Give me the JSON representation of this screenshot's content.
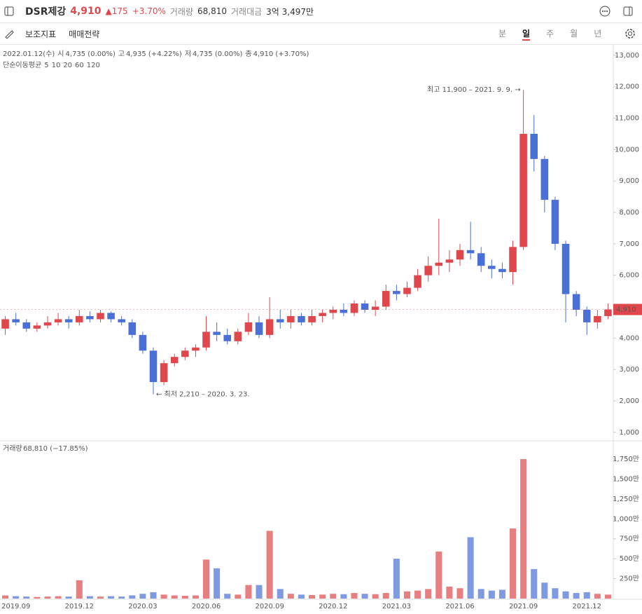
{
  "header": {
    "title": "DSR제강",
    "price": "4,910",
    "change": "175",
    "change_pct": "+3.70%",
    "volume_label": "거래량",
    "volume": "68,810",
    "amount_label": "거래대금",
    "amount": "3억 3,497만"
  },
  "toolbar": {
    "tools": [
      "보조지표",
      "매매전략"
    ],
    "periods": [
      "분",
      "일",
      "주",
      "월",
      "년"
    ],
    "active_period": 1
  },
  "info": {
    "date": "2022.01.12(수)",
    "items": [
      [
        "시",
        "4,735 (0.00%)"
      ],
      [
        "고",
        "4,935 (+4.22%)"
      ],
      [
        "저",
        "4,735 (0.00%)"
      ],
      [
        "종",
        "4,910 (+3.70%)"
      ]
    ],
    "ma_label": "단순이동평균",
    "ma": [
      {
        "name": "5",
        "color": "#e0474c"
      },
      {
        "name": "10",
        "color": "#f08a24"
      },
      {
        "name": "20",
        "color": "#d9a300"
      },
      {
        "name": "60",
        "color": "#3fa34d"
      },
      {
        "name": "120",
        "color": "#1d7f86"
      }
    ]
  },
  "chart_data": [
    {
      "type": "candlestick",
      "up_color": "#e0474c",
      "down_color": "#4a6fd6",
      "categories": [
        null,
        "2019.09",
        null,
        null,
        null,
        null,
        null,
        "2019.12",
        null,
        null,
        null,
        null,
        null,
        "2020.03",
        null,
        null,
        null,
        null,
        null,
        "2020.06",
        null,
        null,
        null,
        null,
        null,
        "2020.09",
        null,
        null,
        null,
        null,
        null,
        "2020.12",
        null,
        null,
        null,
        null,
        null,
        "2021.03",
        null,
        null,
        null,
        null,
        null,
        "2021.06",
        null,
        null,
        null,
        null,
        null,
        "2021.09",
        null,
        null,
        null,
        null,
        null,
        "2021.12",
        null,
        null
      ],
      "open": [
        4300,
        4600,
        4500,
        4300,
        4400,
        4500,
        4600,
        4500,
        4700,
        4600,
        4800,
        4600,
        4500,
        4100,
        3600,
        2600,
        3200,
        3400,
        3600,
        3700,
        4200,
        4100,
        3900,
        4200,
        4500,
        4100,
        4600,
        4500,
        4700,
        4500,
        4700,
        4800,
        4900,
        4800,
        5100,
        4900,
        5000,
        5500,
        5400,
        5600,
        6000,
        6300,
        6400,
        6500,
        6800,
        6700,
        6300,
        6200,
        6100,
        6900,
        10500,
        9700,
        8400,
        7000,
        5400,
        4900,
        4500,
        4700
      ],
      "high": [
        4700,
        4800,
        4600,
        4500,
        4700,
        4800,
        4700,
        4900,
        4850,
        4900,
        4850,
        4700,
        4600,
        4200,
        3700,
        3300,
        3500,
        3700,
        3800,
        4700,
        4500,
        4300,
        4300,
        4800,
        4700,
        5300,
        4900,
        4900,
        4800,
        4900,
        4900,
        5000,
        5100,
        5200,
        5200,
        5200,
        5700,
        5700,
        5800,
        6200,
        6600,
        7800,
        6800,
        7000,
        7700,
        6900,
        6500,
        6400,
        7100,
        11900,
        11100,
        9800,
        8500,
        7100,
        5500,
        5000,
        4900,
        5100
      ],
      "low": [
        4100,
        4400,
        4200,
        4200,
        4300,
        4400,
        4300,
        4400,
        4500,
        4500,
        4500,
        4400,
        4000,
        3500,
        2210,
        2500,
        3100,
        3300,
        3400,
        3600,
        3900,
        3800,
        3800,
        4100,
        4000,
        4000,
        4300,
        4300,
        4400,
        4400,
        4500,
        4600,
        4700,
        4700,
        4800,
        4700,
        4900,
        5200,
        5300,
        5500,
        5800,
        6000,
        6100,
        6300,
        6500,
        6100,
        5900,
        5900,
        5700,
        6800,
        9300,
        8000,
        6800,
        4500,
        4700,
        4100,
        4300,
        4600
      ],
      "close": [
        4600,
        4500,
        4300,
        4400,
        4500,
        4600,
        4500,
        4700,
        4600,
        4800,
        4600,
        4500,
        4100,
        3600,
        2600,
        3200,
        3400,
        3600,
        3700,
        4200,
        4100,
        3900,
        4200,
        4500,
        4100,
        4600,
        4500,
        4700,
        4500,
        4700,
        4800,
        4900,
        4800,
        5100,
        4900,
        5000,
        5500,
        5400,
        5600,
        6000,
        6300,
        6400,
        6500,
        6800,
        6700,
        6300,
        6200,
        6100,
        6900,
        10500,
        9700,
        8400,
        7000,
        5400,
        4900,
        4500,
        4700,
        4910
      ],
      "ylim": [
        750,
        13310
      ],
      "yticks": [
        {
          "value": 1000,
          "label": "1,000"
        },
        {
          "value": 2000,
          "label": "2,000"
        },
        {
          "value": 3000,
          "label": "3,000"
        },
        {
          "value": 4000,
          "label": "4,000"
        },
        {
          "value": 5000,
          "label": "5,000"
        },
        {
          "value": 6000,
          "label": "6,000"
        },
        {
          "value": 7000,
          "label": "7,000"
        },
        {
          "value": 8000,
          "label": "8,000"
        },
        {
          "value": 9000,
          "label": "9,000"
        },
        {
          "value": 10000,
          "label": "10,000"
        },
        {
          "value": 11000,
          "label": "11,000"
        },
        {
          "value": 12000,
          "label": "12,000"
        },
        {
          "value": 13000,
          "label": "13,000"
        }
      ],
      "annotations": [
        {
          "text": "최고 11,900 – 2021. 9. 9. →",
          "index": 49,
          "value": 11900,
          "side": "left"
        },
        {
          "text": "← 최저 2,210 – 2020. 3. 23.",
          "index": 14,
          "value": 2210,
          "side": "right"
        }
      ],
      "last_price": {
        "value": 4910,
        "label": "4,910"
      }
    },
    {
      "type": "volume",
      "title": "거래량",
      "subtitle": "68,810 (−17.85%)",
      "values": [
        40,
        30,
        25,
        20,
        25,
        30,
        25,
        230,
        30,
        25,
        30,
        25,
        40,
        60,
        80,
        50,
        40,
        35,
        40,
        490,
        380,
        60,
        50,
        170,
        170,
        850,
        120,
        60,
        50,
        45,
        50,
        60,
        55,
        70,
        60,
        55,
        70,
        500,
        90,
        100,
        120,
        590,
        150,
        130,
        770,
        120,
        100,
        110,
        880,
        1750,
        370,
        200,
        130,
        90,
        70,
        80,
        60,
        50
      ],
      "ylim": [
        0,
        1970
      ],
      "yticks": [
        {
          "value": 250,
          "label": "250만"
        },
        {
          "value": 500,
          "label": "500만"
        },
        {
          "value": 750,
          "label": "750만"
        },
        {
          "value": 1000,
          "label": "1,000만"
        },
        {
          "value": 1250,
          "label": "1,250만"
        },
        {
          "value": 1500,
          "label": "1,500만"
        },
        {
          "value": 1750,
          "label": "1,750만"
        }
      ]
    }
  ]
}
